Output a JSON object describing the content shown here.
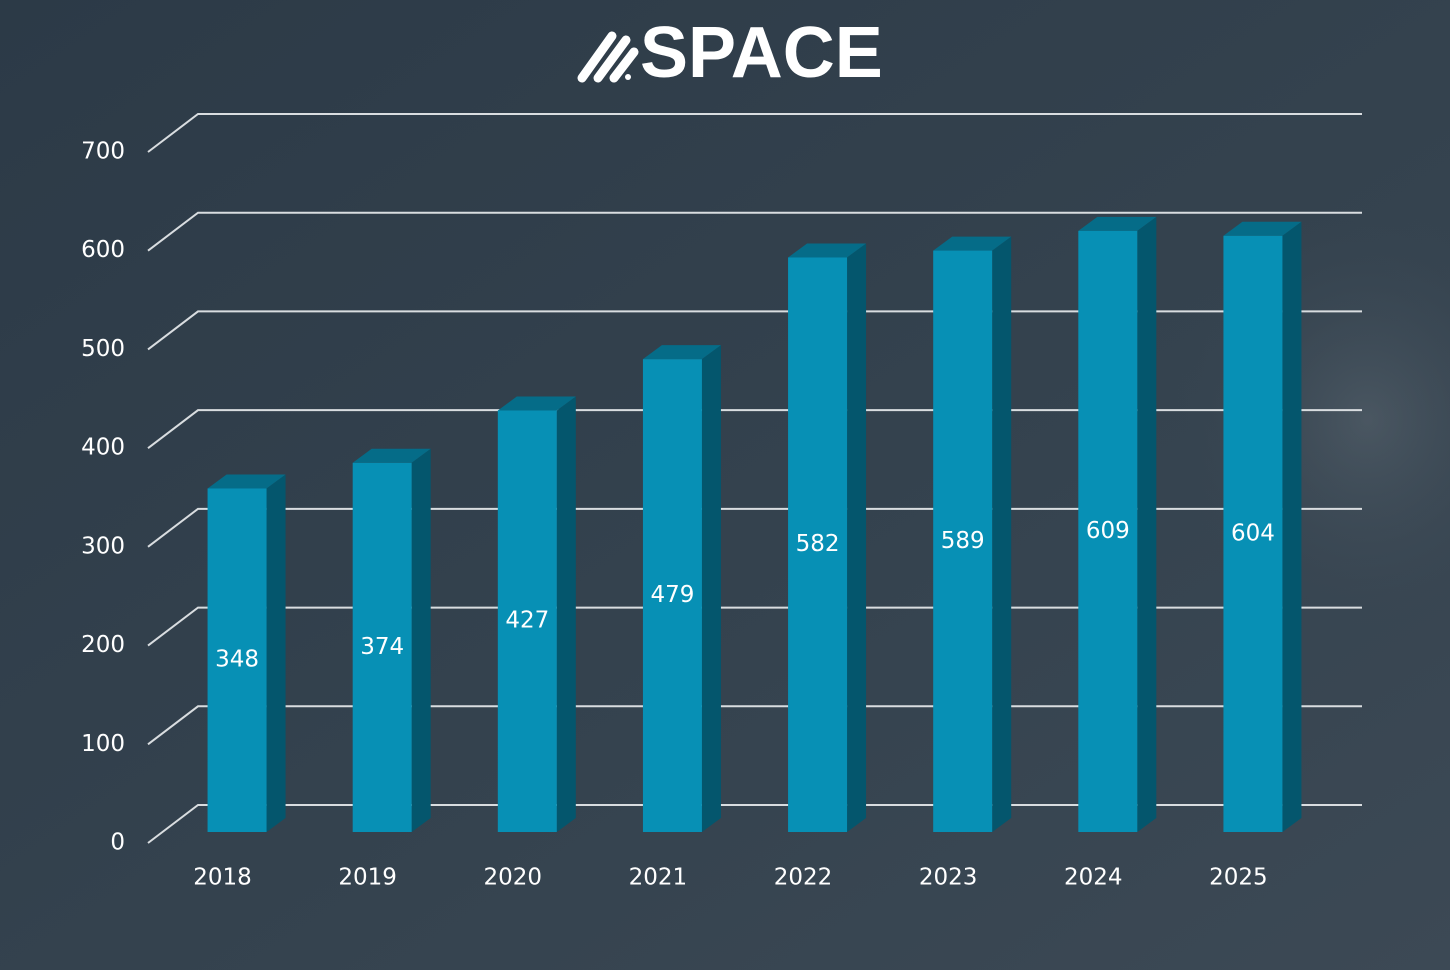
{
  "chart_data": {
    "type": "bar3d",
    "title": "SPACE",
    "categories": [
      "2018",
      "2019",
      "2020",
      "2021",
      "2022",
      "2023",
      "2024",
      "2025"
    ],
    "values": [
      348,
      374,
      427,
      479,
      582,
      589,
      609,
      604
    ],
    "color": "#0790b5",
    "ylim": [
      0,
      700
    ],
    "yticks": [
      0,
      100,
      200,
      300,
      400,
      500,
      600,
      700
    ],
    "grid": true
  }
}
